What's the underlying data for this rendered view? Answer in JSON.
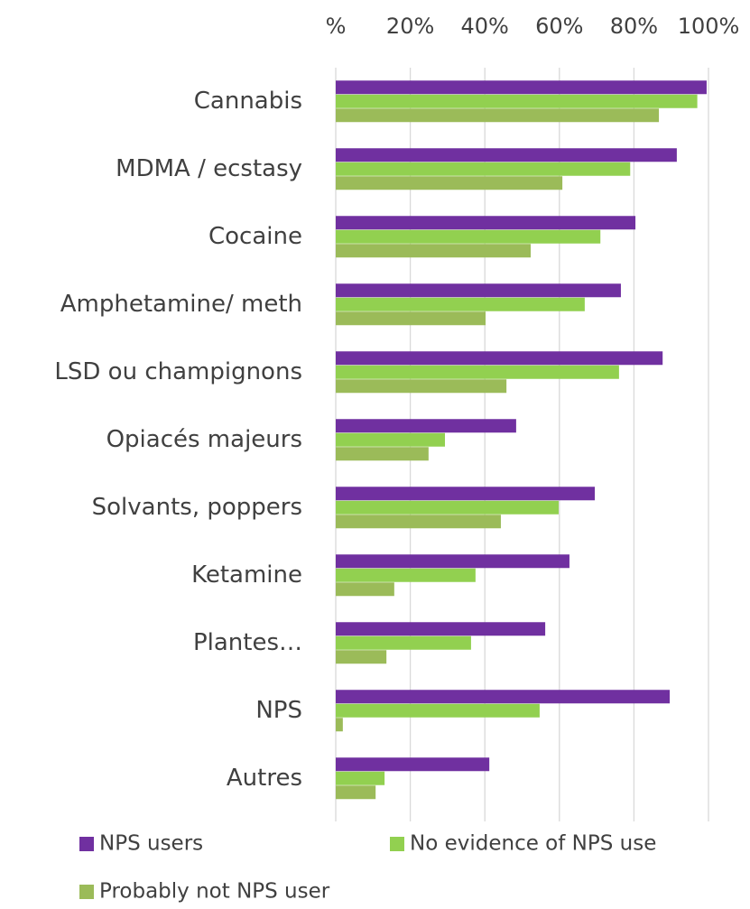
{
  "chart_data": {
    "type": "hbar",
    "categories": [
      "Cannabis",
      "MDMA / ecstasy",
      "Cocaine",
      "Amphetamine/ meth",
      "LSD  ou champignons",
      "Opiacés majeurs",
      "Solvants, poppers",
      "Ketamine",
      "Plantes…",
      "NPS",
      "Autres"
    ],
    "series": [
      {
        "name": "NPS users",
        "color": "#7030a0",
        "values": [
          99.5,
          91.5,
          80.4,
          76.5,
          87.7,
          48.4,
          69.5,
          62.7,
          56.2,
          89.6,
          41.2
        ]
      },
      {
        "name": "No evidence of NPS use",
        "color": "#92d050",
        "values": [
          97,
          79,
          71,
          66.8,
          76,
          29.3,
          59.8,
          37.5,
          36.3,
          54.7,
          13.1
        ]
      },
      {
        "name": "Probably not NPS user",
        "color": "#9bbb59",
        "values": [
          86.7,
          60.8,
          52.3,
          40.2,
          45.8,
          24.9,
          44.3,
          15.7,
          13.6,
          1.9,
          10.7
        ]
      }
    ],
    "xlim": [
      0,
      100
    ],
    "xticks": [
      {
        "value": 0,
        "label": "%"
      },
      {
        "value": 20,
        "label": "20%"
      },
      {
        "value": 40,
        "label": "40%"
      },
      {
        "value": 60,
        "label": "60%"
      },
      {
        "value": 80,
        "label": "80%"
      },
      {
        "value": 100,
        "label": "100%"
      }
    ],
    "grid": true,
    "legend": "bottom"
  }
}
